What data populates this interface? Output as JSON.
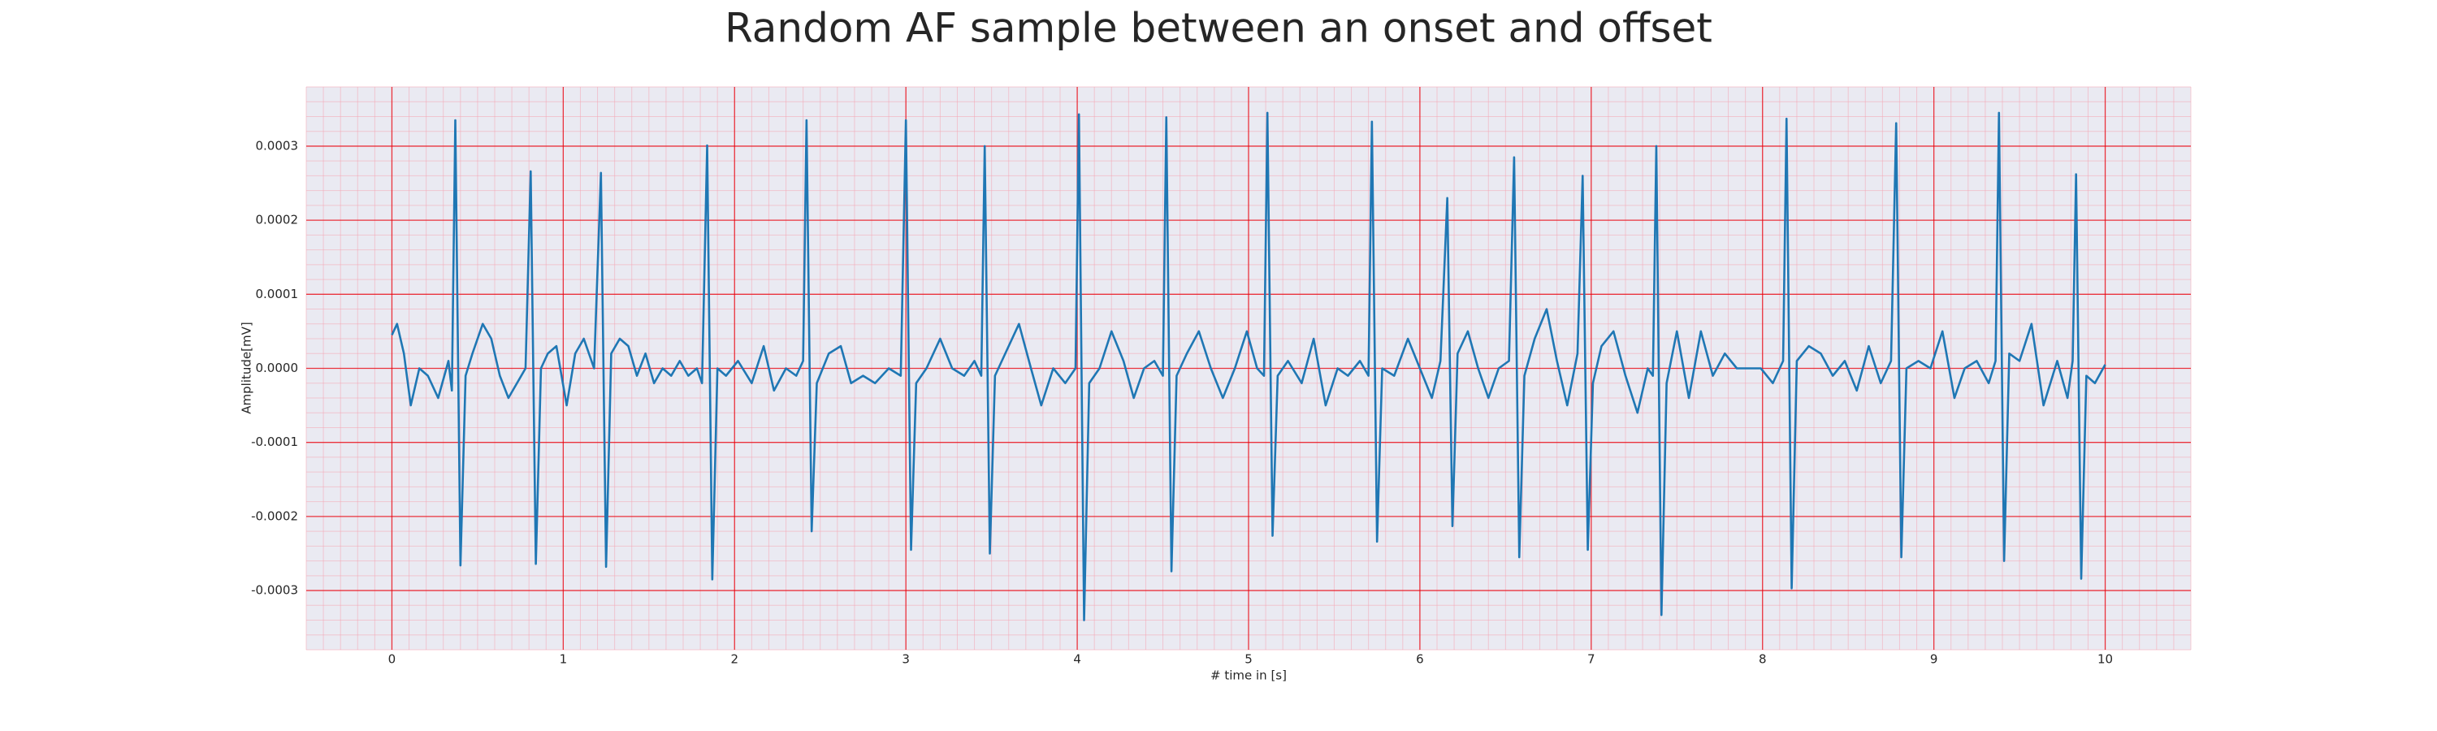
{
  "chart_data": {
    "type": "line",
    "title": "Random AF sample between an onset and offset",
    "xlabel": "# time in [s]",
    "ylabel": "Amplitude[mV]",
    "xlim": [
      -0.5,
      10.5
    ],
    "ylim": [
      -0.00038,
      0.00038
    ],
    "xticks": [
      0,
      1,
      2,
      3,
      4,
      5,
      6,
      7,
      8,
      9,
      10
    ],
    "yticks": [
      {
        "value": -0.0003,
        "label": "-0.0003"
      },
      {
        "value": -0.0002,
        "label": "-0.0002"
      },
      {
        "value": -0.0001,
        "label": "-0.0001"
      },
      {
        "value": 0,
        "label": "0.0000"
      },
      {
        "value": 0.0001,
        "label": "0.0001"
      },
      {
        "value": 0.0002,
        "label": "0.0002"
      },
      {
        "value": 0.0003,
        "label": "0.0003"
      }
    ],
    "grid": true,
    "minor_grid": true,
    "grid_color": "#e8000b",
    "minor_grid_color": "#f4a6b4",
    "background": "#eaeaf2",
    "x": [
      0.0,
      0.03,
      0.07,
      0.11,
      0.16,
      0.21,
      0.27,
      0.33,
      0.35,
      0.37,
      0.4,
      0.43,
      0.47,
      0.53,
      0.58,
      0.63,
      0.68,
      0.73,
      0.78,
      0.81,
      0.84,
      0.87,
      0.91,
      0.96,
      1.02,
      1.07,
      1.12,
      1.18,
      1.22,
      1.25,
      1.28,
      1.33,
      1.38,
      1.43,
      1.48,
      1.53,
      1.58,
      1.63,
      1.68,
      1.73,
      1.78,
      1.81,
      1.84,
      1.87,
      1.9,
      1.95,
      2.02,
      2.1,
      2.17,
      2.23,
      2.3,
      2.36,
      2.4,
      2.42,
      2.45,
      2.48,
      2.55,
      2.62,
      2.68,
      2.75,
      2.82,
      2.9,
      2.97,
      3.0,
      3.03,
      3.06,
      3.12,
      3.2,
      3.27,
      3.34,
      3.4,
      3.44,
      3.46,
      3.49,
      3.52,
      3.58,
      3.66,
      3.73,
      3.79,
      3.86,
      3.93,
      3.99,
      4.01,
      4.04,
      4.07,
      4.13,
      4.2,
      4.27,
      4.33,
      4.39,
      4.45,
      4.5,
      4.52,
      4.55,
      4.58,
      4.64,
      4.71,
      4.78,
      4.85,
      4.92,
      4.99,
      5.05,
      5.09,
      5.11,
      5.14,
      5.17,
      5.23,
      5.31,
      5.38,
      5.45,
      5.52,
      5.58,
      5.65,
      5.7,
      5.72,
      5.75,
      5.78,
      5.85,
      5.93,
      6.0,
      6.07,
      6.12,
      6.16,
      6.19,
      6.22,
      6.28,
      6.34,
      6.4,
      6.46,
      6.52,
      6.55,
      6.58,
      6.61,
      6.67,
      6.74,
      6.8,
      6.86,
      6.92,
      6.95,
      6.98,
      7.01,
      7.06,
      7.13,
      7.2,
      7.27,
      7.33,
      7.36,
      7.38,
      7.41,
      7.44,
      7.5,
      7.57,
      7.64,
      7.71,
      7.78,
      7.85,
      7.92,
      7.99,
      8.06,
      8.12,
      8.14,
      8.17,
      8.2,
      8.27,
      8.34,
      8.41,
      8.48,
      8.55,
      8.62,
      8.69,
      8.75,
      8.78,
      8.81,
      8.84,
      8.91,
      8.98,
      9.05,
      9.12,
      9.18,
      9.25,
      9.32,
      9.36,
      9.38,
      9.41,
      9.44,
      9.5,
      9.57,
      9.64,
      9.72,
      9.78,
      9.81,
      9.83,
      9.86,
      9.89,
      9.94,
      10.0
    ],
    "series": [
      {
        "color": "#1f77b4",
        "values": [
          4.5e-05,
          6e-05,
          2e-05,
          -5e-05,
          0.0,
          -1e-05,
          -4e-05,
          1e-05,
          -3e-05,
          0.000335,
          -0.000266,
          -1e-05,
          2e-05,
          6e-05,
          4e-05,
          -1e-05,
          -4e-05,
          -2e-05,
          0.0,
          0.000266,
          -0.000264,
          0.0,
          2e-05,
          3e-05,
          -5e-05,
          2e-05,
          4e-05,
          0.0,
          0.000264,
          -0.000268,
          2e-05,
          4e-05,
          3e-05,
          -1e-05,
          2e-05,
          -2e-05,
          0.0,
          -1e-05,
          1e-05,
          -1e-05,
          0.0,
          -2e-05,
          0.000301,
          -0.000285,
          0.0,
          -1e-05,
          1e-05,
          -2e-05,
          3e-05,
          -3e-05,
          0.0,
          -1e-05,
          1e-05,
          0.000335,
          -0.00022,
          -2e-05,
          2e-05,
          3e-05,
          -2e-05,
          -1e-05,
          -2e-05,
          0.0,
          -1e-05,
          0.000335,
          -0.000245,
          -2e-05,
          0.0,
          4e-05,
          0.0,
          -1e-05,
          1e-05,
          -1e-05,
          0.0003,
          -0.00025,
          -1e-05,
          2e-05,
          6e-05,
          0.0,
          -5e-05,
          0.0,
          -2e-05,
          0.0,
          0.000343,
          -0.00034,
          -2e-05,
          0.0,
          5e-05,
          1e-05,
          -4e-05,
          0.0,
          1e-05,
          -1e-05,
          0.000339,
          -0.000274,
          -1e-05,
          2e-05,
          5e-05,
          0.0,
          -4e-05,
          0.0,
          5e-05,
          0.0,
          -1e-05,
          0.000345,
          -0.000226,
          -1e-05,
          1e-05,
          -2e-05,
          4e-05,
          -5e-05,
          0.0,
          -1e-05,
          1e-05,
          -1e-05,
          0.000333,
          -0.000234,
          0.0,
          -1e-05,
          4e-05,
          0.0,
          -4e-05,
          1e-05,
          0.00023,
          -0.000213,
          2e-05,
          5e-05,
          0.0,
          -4e-05,
          0.0,
          1e-05,
          0.000285,
          -0.000255,
          -1e-05,
          4e-05,
          8e-05,
          1e-05,
          -5e-05,
          2e-05,
          0.00026,
          -0.000245,
          -2e-05,
          3e-05,
          5e-05,
          -1e-05,
          -6e-05,
          0.0,
          -1e-05,
          0.0003,
          -0.000333,
          -2e-05,
          5e-05,
          -4e-05,
          5e-05,
          -1e-05,
          2e-05,
          0.0,
          0.0,
          0.0,
          -2e-05,
          1e-05,
          0.000337,
          -0.000297,
          1e-05,
          3e-05,
          2e-05,
          -1e-05,
          1e-05,
          -3e-05,
          3e-05,
          -2e-05,
          1e-05,
          0.000331,
          -0.000255,
          0.0,
          1e-05,
          0.0,
          5e-05,
          -4e-05,
          0.0,
          1e-05,
          -2e-05,
          1e-05,
          0.000345,
          -0.00026,
          2e-05,
          1e-05,
          6e-05,
          -5e-05,
          1e-05,
          -4e-05,
          1e-05,
          0.000262,
          -0.000284,
          -1e-05,
          -2e-05,
          5e-06
        ]
      }
    ]
  }
}
